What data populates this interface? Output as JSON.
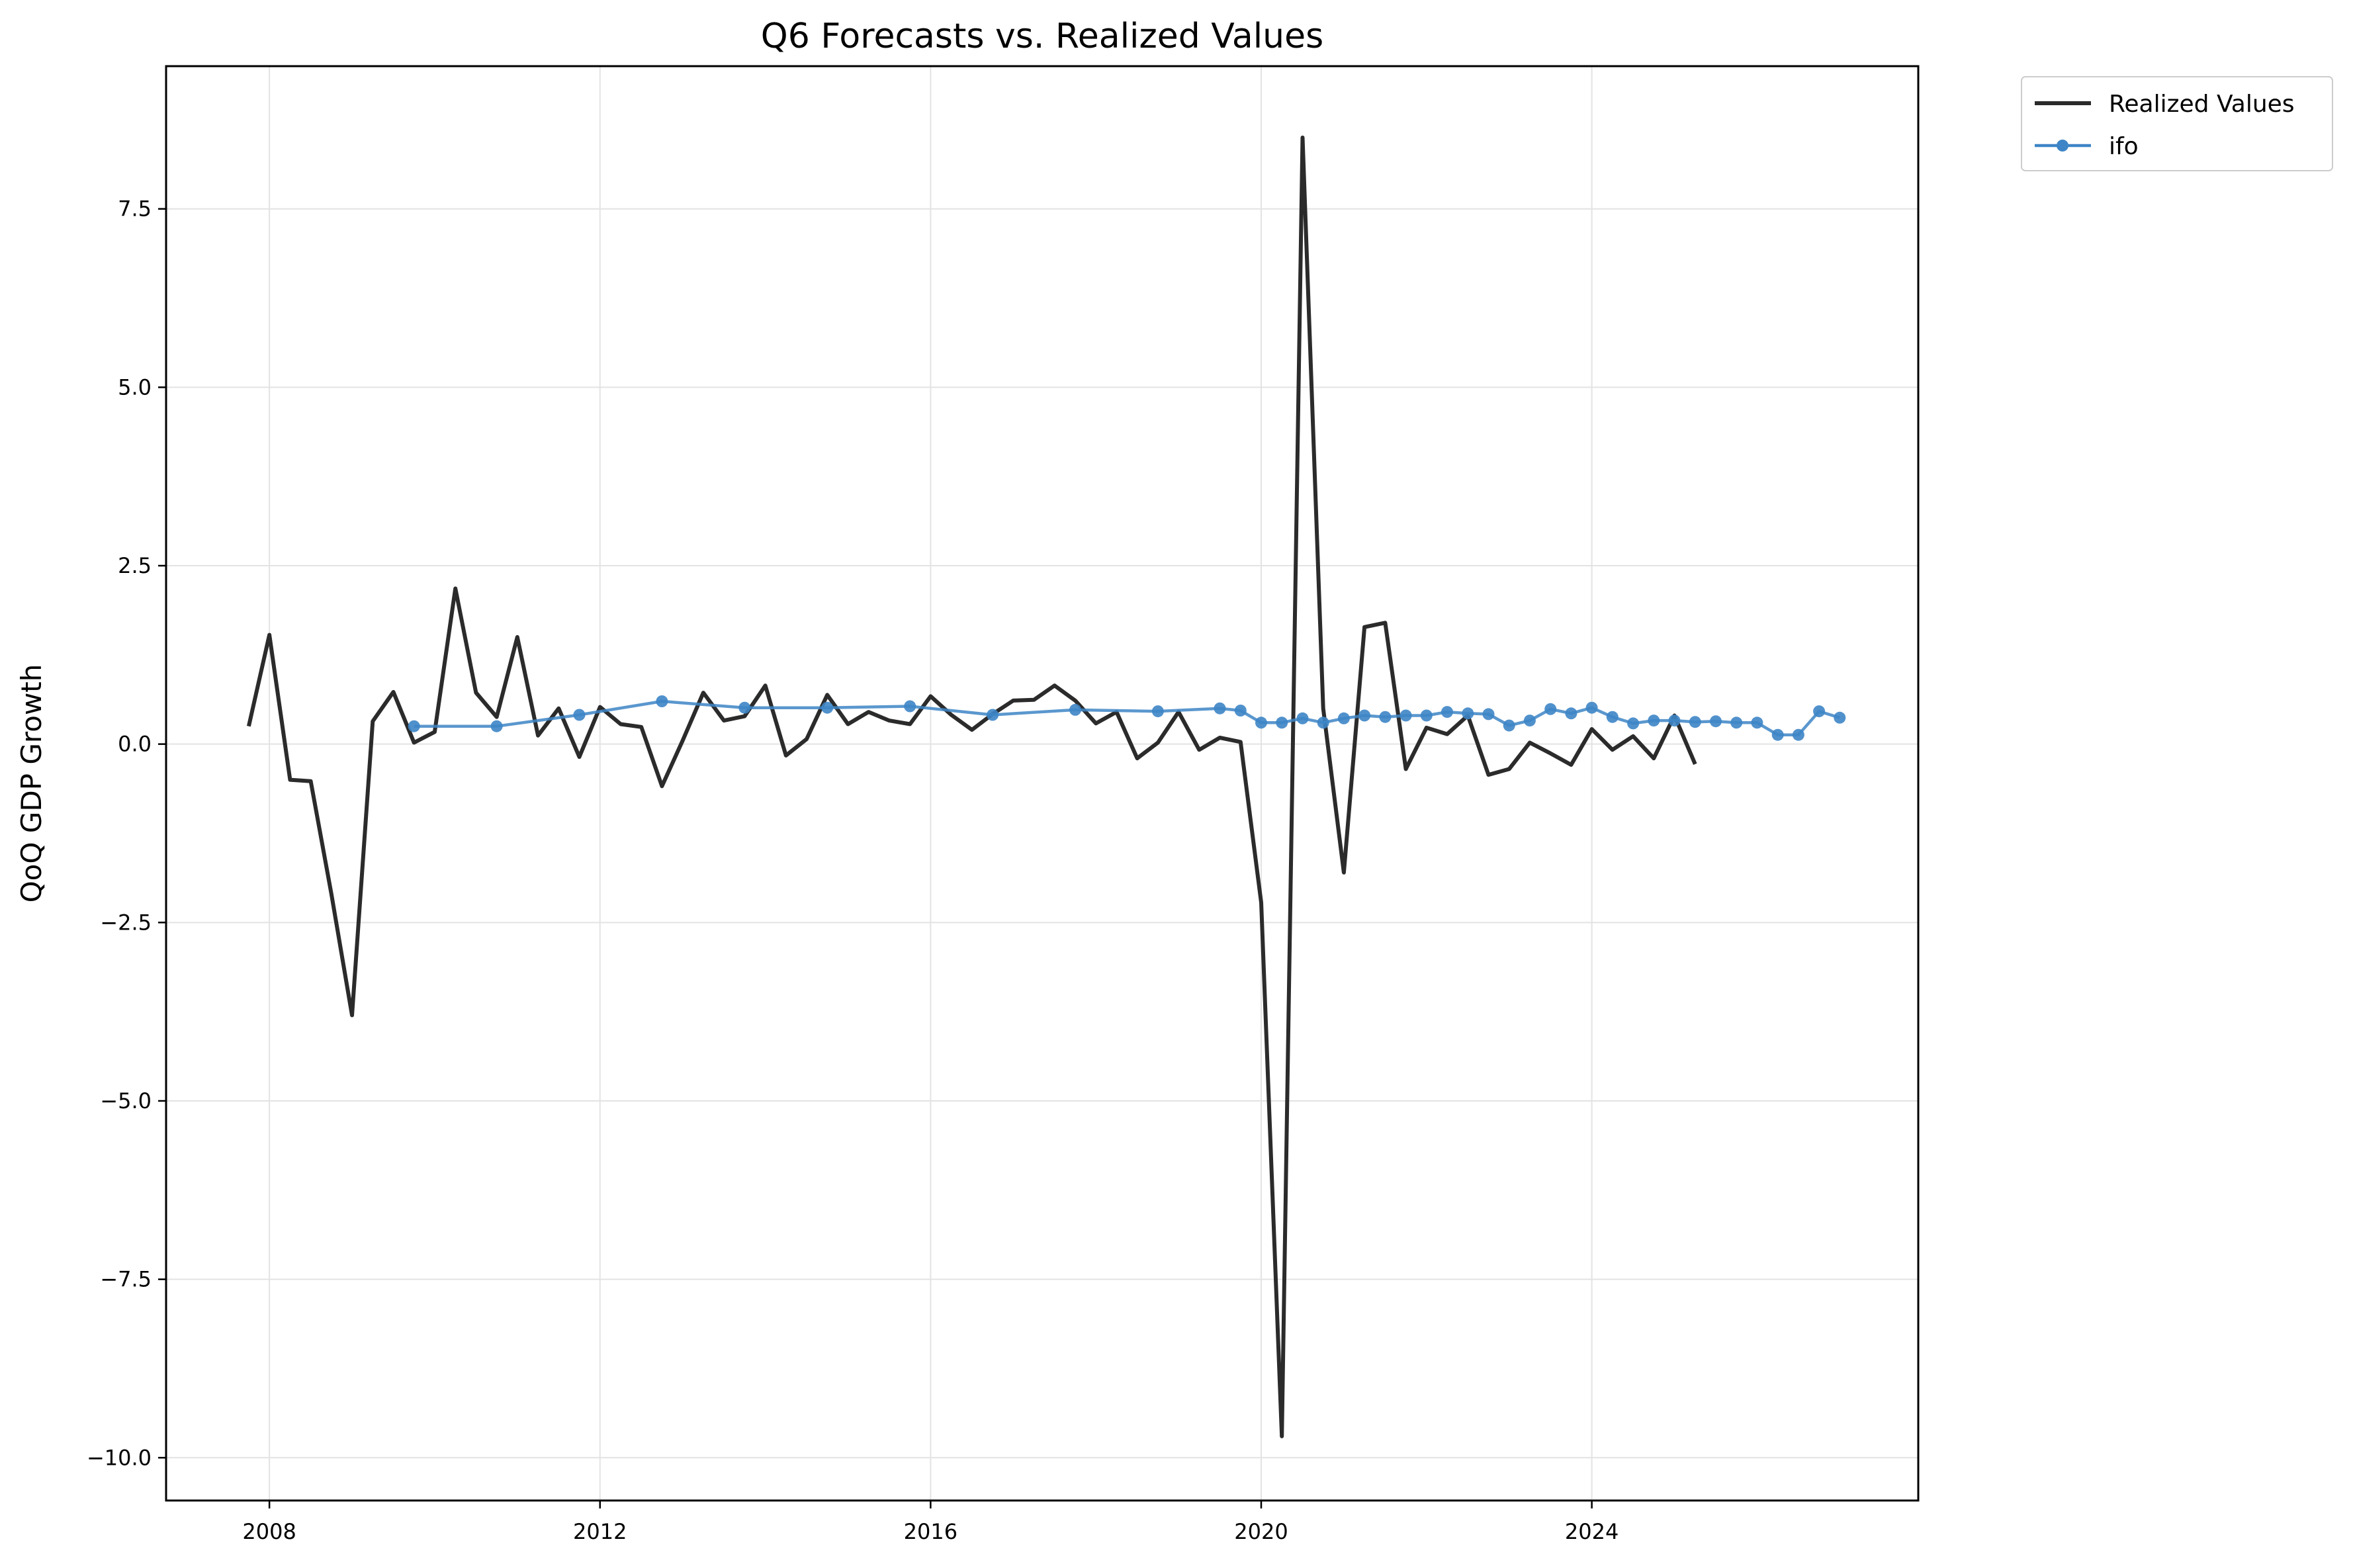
{
  "chart_data": {
    "type": "line",
    "title": "Q6 Forecasts vs. Realized Values",
    "xlabel": "",
    "ylabel": "QoQ GDP Growth",
    "xlim": [
      2006.75,
      2027.95
    ],
    "ylim": [
      -10.6,
      9.5
    ],
    "x_ticks": [
      2008,
      2012,
      2016,
      2020,
      2024
    ],
    "x_tick_labels": [
      "2008",
      "2012",
      "2016",
      "2020",
      "2024"
    ],
    "y_ticks": [
      7.5,
      5.0,
      2.5,
      0.0,
      -2.5,
      -5.0,
      -7.5,
      -10.0
    ],
    "y_tick_labels": [
      "7.5",
      "5.0",
      "2.5",
      "0.0",
      "−2.5",
      "−5.0",
      "−7.5",
      "−10.0"
    ],
    "grid": true,
    "legend_position": "outside-top-right",
    "series": [
      {
        "name": "Realized Values",
        "color": "#2b2b2b",
        "marker": "none",
        "points": [
          [
            2007.75,
            0.25
          ],
          [
            2008.0,
            1.53
          ],
          [
            2008.25,
            -0.5
          ],
          [
            2008.5,
            -0.52
          ],
          [
            2008.75,
            -2.1
          ],
          [
            2009.0,
            -3.8
          ],
          [
            2009.25,
            0.32
          ],
          [
            2009.5,
            0.73
          ],
          [
            2009.75,
            0.02
          ],
          [
            2010.0,
            0.17
          ],
          [
            2010.25,
            2.18
          ],
          [
            2010.5,
            0.72
          ],
          [
            2010.75,
            0.38
          ],
          [
            2011.0,
            1.5
          ],
          [
            2011.25,
            0.12
          ],
          [
            2011.5,
            0.5
          ],
          [
            2011.75,
            -0.18
          ],
          [
            2012.0,
            0.52
          ],
          [
            2012.25,
            0.28
          ],
          [
            2012.5,
            0.24
          ],
          [
            2012.75,
            -0.59
          ],
          [
            2013.0,
            0.05
          ],
          [
            2013.25,
            0.72
          ],
          [
            2013.5,
            0.33
          ],
          [
            2013.75,
            0.39
          ],
          [
            2014.0,
            0.82
          ],
          [
            2014.25,
            -0.16
          ],
          [
            2014.5,
            0.07
          ],
          [
            2014.75,
            0.69
          ],
          [
            2015.0,
            0.28
          ],
          [
            2015.25,
            0.45
          ],
          [
            2015.5,
            0.33
          ],
          [
            2015.75,
            0.28
          ],
          [
            2016.0,
            0.67
          ],
          [
            2016.25,
            0.41
          ],
          [
            2016.5,
            0.2
          ],
          [
            2016.75,
            0.42
          ],
          [
            2017.0,
            0.61
          ],
          [
            2017.25,
            0.62
          ],
          [
            2017.5,
            0.82
          ],
          [
            2017.75,
            0.61
          ],
          [
            2018.0,
            0.29
          ],
          [
            2018.25,
            0.45
          ],
          [
            2018.5,
            -0.2
          ],
          [
            2018.75,
            0.02
          ],
          [
            2019.0,
            0.45
          ],
          [
            2019.25,
            -0.08
          ],
          [
            2019.5,
            0.09
          ],
          [
            2019.75,
            0.03
          ],
          [
            2020.0,
            -2.22
          ],
          [
            2020.25,
            -9.7
          ],
          [
            2020.5,
            8.5
          ],
          [
            2020.75,
            0.5
          ],
          [
            2021.0,
            -1.8
          ],
          [
            2021.25,
            1.64
          ],
          [
            2021.5,
            1.7
          ],
          [
            2021.75,
            -0.35
          ],
          [
            2022.0,
            0.23
          ],
          [
            2022.25,
            0.14
          ],
          [
            2022.5,
            0.4
          ],
          [
            2022.75,
            -0.43
          ],
          [
            2023.0,
            -0.35
          ],
          [
            2023.25,
            0.02
          ],
          [
            2023.5,
            -0.13
          ],
          [
            2023.75,
            -0.29
          ],
          [
            2024.0,
            0.21
          ],
          [
            2024.25,
            -0.08
          ],
          [
            2024.5,
            0.11
          ],
          [
            2024.75,
            -0.2
          ],
          [
            2025.0,
            0.4
          ],
          [
            2025.25,
            -0.28
          ]
        ]
      },
      {
        "name": "ifo",
        "color": "#3d85c6",
        "marker": "circle",
        "points": [
          [
            2009.75,
            0.25
          ],
          [
            2010.75,
            0.25
          ],
          [
            2011.75,
            0.41
          ],
          [
            2012.75,
            0.6
          ],
          [
            2013.75,
            0.51
          ],
          [
            2014.75,
            0.51
          ],
          [
            2015.75,
            0.53
          ],
          [
            2016.75,
            0.41
          ],
          [
            2017.75,
            0.48
          ],
          [
            2018.75,
            0.46
          ],
          [
            2019.5,
            0.5
          ],
          [
            2019.75,
            0.47
          ],
          [
            2020.0,
            0.3
          ],
          [
            2020.25,
            0.3
          ],
          [
            2020.5,
            0.36
          ],
          [
            2020.75,
            0.3
          ],
          [
            2021.0,
            0.36
          ],
          [
            2021.25,
            0.4
          ],
          [
            2021.5,
            0.38
          ],
          [
            2021.75,
            0.4
          ],
          [
            2022.0,
            0.4
          ],
          [
            2022.25,
            0.45
          ],
          [
            2022.5,
            0.43
          ],
          [
            2022.75,
            0.42
          ],
          [
            2023.0,
            0.26
          ],
          [
            2023.25,
            0.33
          ],
          [
            2023.5,
            0.49
          ],
          [
            2023.75,
            0.43
          ],
          [
            2024.0,
            0.51
          ],
          [
            2024.25,
            0.38
          ],
          [
            2024.5,
            0.29
          ],
          [
            2024.75,
            0.33
          ],
          [
            2025.0,
            0.33
          ],
          [
            2025.25,
            0.31
          ],
          [
            2025.5,
            0.32
          ],
          [
            2025.75,
            0.3
          ],
          [
            2026.0,
            0.3
          ],
          [
            2026.25,
            0.13
          ],
          [
            2026.5,
            0.13
          ],
          [
            2026.75,
            0.46
          ],
          [
            2027.0,
            0.37
          ]
        ]
      }
    ]
  }
}
